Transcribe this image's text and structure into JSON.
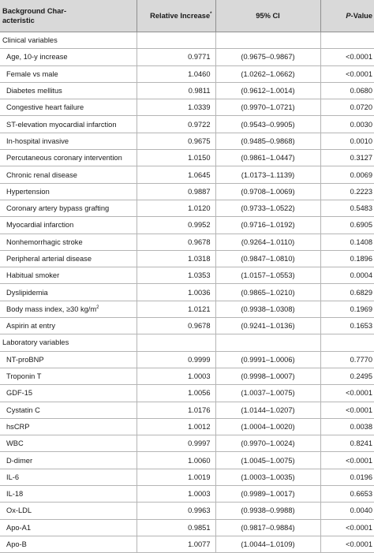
{
  "header": {
    "col1_line1": "Background Char-",
    "col1_line2": "acteristic",
    "col2": "Relative Increase",
    "col2_mark": "*",
    "col3": "95% CI",
    "col4_italic": "P",
    "col4_rest": "-Value"
  },
  "sections": [
    {
      "title": "Clinical variables",
      "rows": [
        {
          "name": "Age, 10-y increase",
          "value": "0.9771",
          "ci": "(0.9675–0.9867)",
          "p": "<0.0001"
        },
        {
          "name": "Female vs male",
          "value": "1.0460",
          "ci": "(1.0262–1.0662)",
          "p": "<0.0001"
        },
        {
          "name": "Diabetes mellitus",
          "value": "0.9811",
          "ci": "(0.9612–1.0014)",
          "p": "0.0680"
        },
        {
          "name": "Congestive heart failure",
          "value": "1.0339",
          "ci": "(0.9970–1.0721)",
          "p": "0.0720"
        },
        {
          "name": "ST-elevation myocardial infarction",
          "value": "0.9722",
          "ci": "(0.9543–0.9905)",
          "p": "0.0030"
        },
        {
          "name": "In-hospital invasive",
          "value": "0.9675",
          "ci": "(0.9485–0.9868)",
          "p": "0.0010"
        },
        {
          "name": "Percutaneous coronary intervention",
          "value": "1.0150",
          "ci": "(0.9861–1.0447)",
          "p": "0.3127"
        },
        {
          "name": "Chronic renal disease",
          "value": "1.0645",
          "ci": "(1.0173–1.1139)",
          "p": "0.0069"
        },
        {
          "name": "Hypertension",
          "value": "0.9887",
          "ci": "(0.9708–1.0069)",
          "p": "0.2223"
        },
        {
          "name": "Coronary artery bypass grafting",
          "value": "1.0120",
          "ci": "(0.9733–1.0522)",
          "p": "0.5483"
        },
        {
          "name": "Myocardial infarction",
          "value": "0.9952",
          "ci": "(0.9716–1.0192)",
          "p": "0.6905"
        },
        {
          "name": "Nonhemorrhagic stroke",
          "value": "0.9678",
          "ci": "(0.9264–1.0110)",
          "p": "0.1408"
        },
        {
          "name": "Peripheral arterial disease",
          "value": "1.0318",
          "ci": "(0.9847–1.0810)",
          "p": "0.1896"
        },
        {
          "name": "Habitual smoker",
          "value": "1.0353",
          "ci": "(1.0157–1.0553)",
          "p": "0.0004"
        },
        {
          "name": "Dyslipidemia",
          "value": "1.0036",
          "ci": "(0.9865–1.0210)",
          "p": "0.6829"
        },
        {
          "name": "Body mass index, ≥30 kg/m",
          "name_sup": "2",
          "value": "1.0121",
          "ci": "(0.9938–1.0308)",
          "p": "0.1969"
        },
        {
          "name": "Aspirin at entry",
          "value": "0.9678",
          "ci": "(0.9241–1.0136)",
          "p": "0.1653"
        }
      ]
    },
    {
      "title": "Laboratory variables",
      "rows": [
        {
          "name": "NT-proBNP",
          "value": "0.9999",
          "ci": "(0.9991–1.0006)",
          "p": "0.7770"
        },
        {
          "name": "Troponin T",
          "value": "1.0003",
          "ci": "(0.9998–1.0007)",
          "p": "0.2495"
        },
        {
          "name": "GDF-15",
          "value": "1.0056",
          "ci": "(1.0037–1.0075)",
          "p": "<0.0001"
        },
        {
          "name": "Cystatin C",
          "value": "1.0176",
          "ci": "(1.0144–1.0207)",
          "p": "<0.0001"
        },
        {
          "name": "hsCRP",
          "value": "1.0012",
          "ci": "(1.0004–1.0020)",
          "p": "0.0038"
        },
        {
          "name": "WBC",
          "value": "0.9997",
          "ci": "(0.9970–1.0024)",
          "p": "0.8241"
        },
        {
          "name": "D-dimer",
          "value": "1.0060",
          "ci": "(1.0045–1.0075)",
          "p": "<0.0001"
        },
        {
          "name": "IL-6",
          "value": "1.0019",
          "ci": "(1.0003–1.0035)",
          "p": "0.0196"
        },
        {
          "name": "IL-18",
          "value": "1.0003",
          "ci": "(0.9989–1.0017)",
          "p": "0.6653"
        },
        {
          "name": "Ox-LDL",
          "value": "0.9963",
          "ci": "(0.9938–0.9988)",
          "p": "0.0040"
        },
        {
          "name": "Apo-A1",
          "value": "0.9851",
          "ci": "(0.9817–0.9884)",
          "p": "<0.0001"
        },
        {
          "name": "Apo-B",
          "value": "1.0077",
          "ci": "(1.0044–1.0109)",
          "p": "<0.0001"
        }
      ]
    }
  ]
}
